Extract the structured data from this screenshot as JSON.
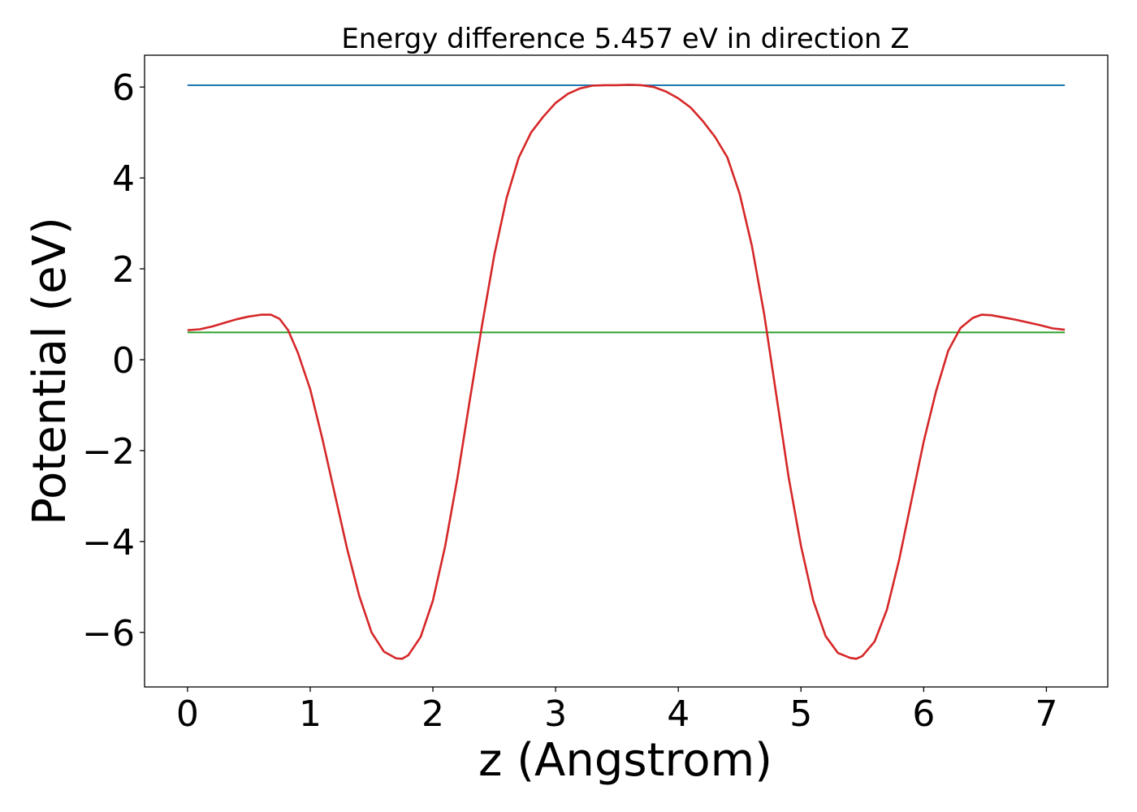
{
  "chart_data": {
    "type": "line",
    "title": "Energy difference 5.457 eV in direction Z",
    "xlabel": "z (Angstrom)",
    "ylabel": "Potential (eV)",
    "xlim": [
      -0.35,
      7.5
    ],
    "ylim": [
      -7.2,
      6.7
    ],
    "grid": false,
    "x_ticks": [
      0,
      1,
      2,
      3,
      4,
      5,
      6,
      7
    ],
    "x_tick_labels": [
      "0",
      "1",
      "2",
      "3",
      "4",
      "5",
      "6",
      "7"
    ],
    "y_ticks": [
      6,
      4,
      2,
      0,
      -2,
      -4,
      -6
    ],
    "y_tick_labels": [
      "6",
      "4",
      "2",
      "0",
      "−2",
      "−4",
      "−6"
    ],
    "series": [
      {
        "color": "#d62728",
        "x": [
          0,
          0.1,
          0.2,
          0.3,
          0.4,
          0.5,
          0.6,
          0.68,
          0.75,
          0.82,
          0.9,
          1.0,
          1.1,
          1.2,
          1.3,
          1.4,
          1.5,
          1.6,
          1.7,
          1.75,
          1.8,
          1.9,
          2.0,
          2.1,
          2.2,
          2.3,
          2.4,
          2.5,
          2.6,
          2.7,
          2.8,
          2.9,
          3.0,
          3.1,
          3.2,
          3.3,
          3.4,
          3.5,
          3.6,
          3.7,
          3.8,
          3.9,
          4.0,
          4.1,
          4.2,
          4.3,
          4.4,
          4.5,
          4.6,
          4.7,
          4.8,
          4.9,
          5.0,
          5.1,
          5.2,
          5.3,
          5.4,
          5.45,
          5.5,
          5.6,
          5.7,
          5.8,
          5.9,
          6.0,
          6.1,
          6.2,
          6.3,
          6.4,
          6.47,
          6.55,
          6.65,
          6.75,
          6.85,
          6.95,
          7.05,
          7.15
        ],
        "y": [
          0.65,
          0.67,
          0.73,
          0.81,
          0.89,
          0.95,
          0.99,
          0.99,
          0.9,
          0.65,
          0.15,
          -0.65,
          -1.75,
          -2.95,
          -4.15,
          -5.2,
          -6.0,
          -6.42,
          -6.57,
          -6.58,
          -6.5,
          -6.1,
          -5.3,
          -4.1,
          -2.6,
          -0.9,
          0.75,
          2.3,
          3.55,
          4.45,
          5.0,
          5.35,
          5.65,
          5.85,
          5.97,
          6.03,
          6.04,
          6.04,
          6.05,
          6.04,
          6.0,
          5.9,
          5.75,
          5.55,
          5.25,
          4.9,
          4.45,
          3.65,
          2.5,
          1.0,
          -0.8,
          -2.6,
          -4.1,
          -5.3,
          -6.08,
          -6.45,
          -6.56,
          -6.58,
          -6.52,
          -6.2,
          -5.5,
          -4.4,
          -3.1,
          -1.8,
          -0.7,
          0.2,
          0.7,
          0.92,
          0.99,
          0.98,
          0.93,
          0.88,
          0.82,
          0.76,
          0.69,
          0.66
        ]
      },
      {
        "color": "#1f77b4",
        "x": [
          0,
          7.15
        ],
        "y": [
          6.04,
          6.04
        ]
      },
      {
        "color": "#2ca02c",
        "x": [
          0,
          7.15
        ],
        "y": [
          0.6,
          0.6
        ]
      }
    ]
  }
}
